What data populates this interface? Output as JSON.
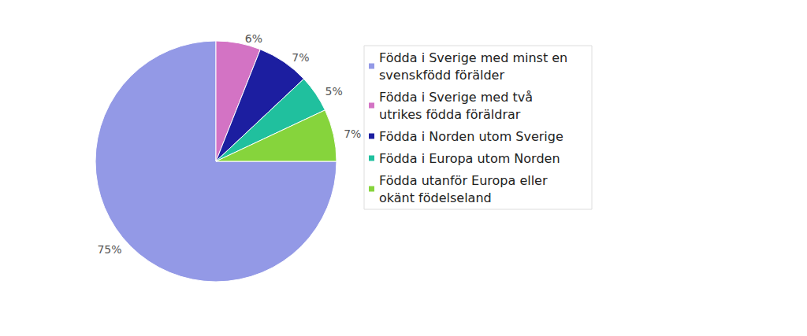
{
  "chart_data": {
    "type": "pie",
    "categories": [
      "Födda i Sverige med minst en svenskfödd förälder",
      "Födda i Sverige med två utrikes födda föräldrar",
      "Födda i Norden utom Sverige",
      "Födda i Europa utom Norden",
      "Födda utanför Europa eller okänt födelseland"
    ],
    "values": [
      75,
      6,
      7,
      5,
      7
    ],
    "value_labels": [
      "75%",
      "6%",
      "7%",
      "5%",
      "7%"
    ],
    "colors": [
      "#9399e6",
      "#d373c4",
      "#1c1ea0",
      "#20c09e",
      "#86d43c"
    ],
    "legend": "right",
    "data_labels": true
  }
}
